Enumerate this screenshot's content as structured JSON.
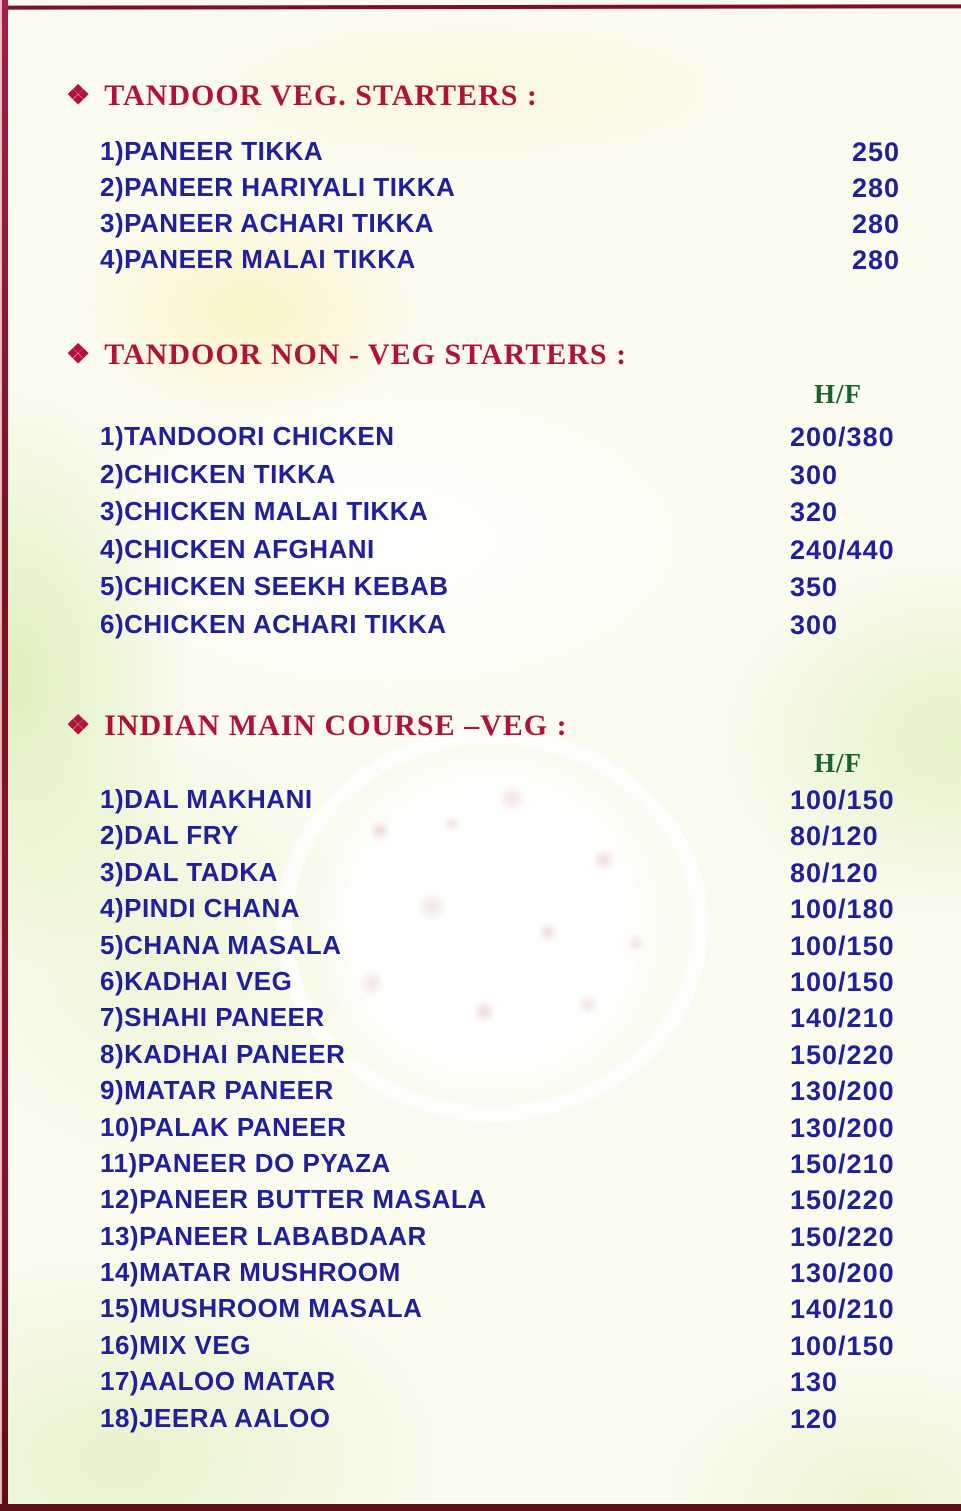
{
  "menu": {
    "bullet_icon": "❖",
    "sections": [
      {
        "title": "TANDOOR VEG. STARTERS :",
        "price_header": "",
        "items": [
          {
            "label": "1)PANEER TIKKA",
            "price": "250"
          },
          {
            "label": "2)PANEER HARIYALI TIKKA",
            "price": "280"
          },
          {
            "label": "3)PANEER ACHARI TIKKA",
            "price": "280"
          },
          {
            "label": "4)PANEER MALAI TIKKA",
            "price": "280"
          }
        ]
      },
      {
        "title": "TANDOOR NON - VEG STARTERS :",
        "price_header": "H/F",
        "items": [
          {
            "label": "1)TANDOORI CHICKEN",
            "price": "200/380"
          },
          {
            "label": "2)CHICKEN TIKKA",
            "price": "300"
          },
          {
            "label": "3)CHICKEN MALAI TIKKA",
            "price": "320"
          },
          {
            "label": "4)CHICKEN AFGHANI",
            "price": "240/440"
          },
          {
            "label": "5)CHICKEN SEEKH KEBAB",
            "price": "350"
          },
          {
            "label": "6)CHICKEN ACHARI TIKKA",
            "price": "300"
          }
        ]
      },
      {
        "title": "INDIAN MAIN COURSE –VEG :",
        "price_header": "H/F",
        "items": [
          {
            "label": "1)DAL MAKHANI",
            "price": "100/150"
          },
          {
            "label": "2)DAL FRY",
            "price": "80/120"
          },
          {
            "label": "3)DAL TADKA",
            "price": "80/120"
          },
          {
            "label": "4)PINDI CHANA",
            "price": "100/180"
          },
          {
            "label": "5)CHANA MASALA",
            "price": "100/150"
          },
          {
            "label": "6)KADHAI VEG",
            "price": "100/150"
          },
          {
            "label": "7)SHAHI PANEER",
            "price": "140/210"
          },
          {
            "label": "8)KADHAI PANEER",
            "price": "150/220"
          },
          {
            "label": "9)MATAR PANEER",
            "price": "130/200"
          },
          {
            "label": "10)PALAK PANEER",
            "price": "130/200"
          },
          {
            "label": "11)PANEER DO PYAZA",
            "price": "150/210"
          },
          {
            "label": "12)PANEER BUTTER MASALA",
            "price": "150/220"
          },
          {
            "label": "13)PANEER LABABDAAR",
            "price": "150/220"
          },
          {
            "label": "14)MATAR MUSHROOM",
            "price": "130/200"
          },
          {
            "label": "15)MUSHROOM MASALA",
            "price": "140/210"
          },
          {
            "label": "16)MIX VEG",
            "price": "100/150"
          },
          {
            "label": "17)AALOO MATAR",
            "price": "130"
          },
          {
            "label": "18)JEERA AALOO",
            "price": "120"
          }
        ]
      }
    ]
  },
  "colors": {
    "header_red": "#b1123a",
    "item_blue": "#20209b",
    "hf_green": "#1a642c",
    "border_maroon": "#7d1024",
    "background_cream": "#fbfbef"
  }
}
